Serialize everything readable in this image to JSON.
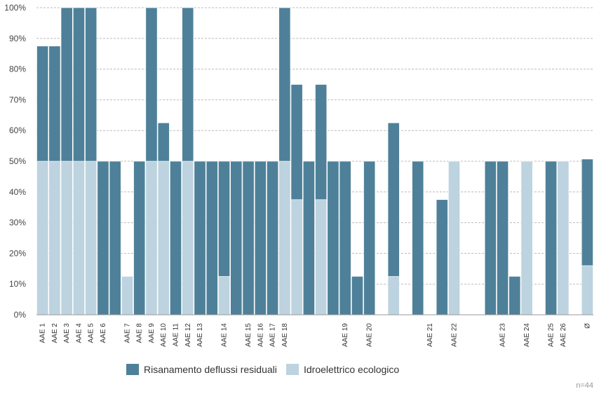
{
  "chart_data": {
    "type": "stacked-bar",
    "categories": [
      "AAE 1",
      "AAE 2",
      "AAE 3",
      "AAE 4",
      "AAE 5",
      "AAE 6",
      null,
      "AAE 7",
      "AAE 8",
      "AAE 9",
      "AAE 10",
      "AAE 11",
      "AAE 12",
      "AAE 13",
      null,
      "AAE 14",
      null,
      "AAE 15",
      "AAE 16",
      "AAE 17",
      "AAE 18",
      null,
      null,
      null,
      null,
      "AAE 19",
      null,
      "AAE 20",
      null,
      null,
      null,
      null,
      "AAE 21",
      null,
      "AAE 22",
      null,
      null,
      null,
      "AAE 23",
      null,
      "AAE 24",
      null,
      "AAE 25",
      "AAE 26",
      null,
      "Ø"
    ],
    "series": [
      {
        "name": "Idroelettrico ecologico",
        "color": "#bdd3df",
        "values": [
          50,
          50,
          50,
          50,
          50,
          null,
          null,
          12.5,
          null,
          50,
          50,
          null,
          50,
          null,
          null,
          12.5,
          null,
          null,
          null,
          null,
          50,
          37.5,
          null,
          37.5,
          null,
          null,
          null,
          null,
          null,
          12.5,
          null,
          null,
          null,
          null,
          50,
          null,
          null,
          null,
          null,
          null,
          50,
          null,
          null,
          50,
          null,
          16
        ]
      },
      {
        "name": "Risanamento deflussi residuali",
        "color": "#4e8199",
        "values": [
          37.5,
          37.5,
          50,
          50,
          50,
          50,
          50,
          null,
          50,
          50,
          12.5,
          50,
          50,
          50,
          50,
          37.5,
          50,
          50,
          50,
          50,
          50,
          37.5,
          50,
          37.5,
          50,
          50,
          12.5,
          50,
          null,
          50,
          null,
          50,
          null,
          37.5,
          null,
          null,
          null,
          50,
          50,
          12.5,
          null,
          null,
          50,
          null,
          null,
          34.7
        ]
      }
    ],
    "ylim": [
      0,
      100
    ],
    "yticks": [
      {
        "value": 0,
        "label": "0%"
      },
      {
        "value": 10,
        "label": "10%"
      },
      {
        "value": 20,
        "label": "20%"
      },
      {
        "value": 30,
        "label": "30%"
      },
      {
        "value": 40,
        "label": "40%"
      },
      {
        "value": 50,
        "label": "50%"
      },
      {
        "value": 60,
        "label": "60%"
      },
      {
        "value": 70,
        "label": "70%"
      },
      {
        "value": 80,
        "label": "80%"
      },
      {
        "value": 90,
        "label": "90%"
      },
      {
        "value": 100,
        "label": "100%"
      }
    ],
    "grid": true,
    "legend": "bottom",
    "note": "n=44"
  }
}
